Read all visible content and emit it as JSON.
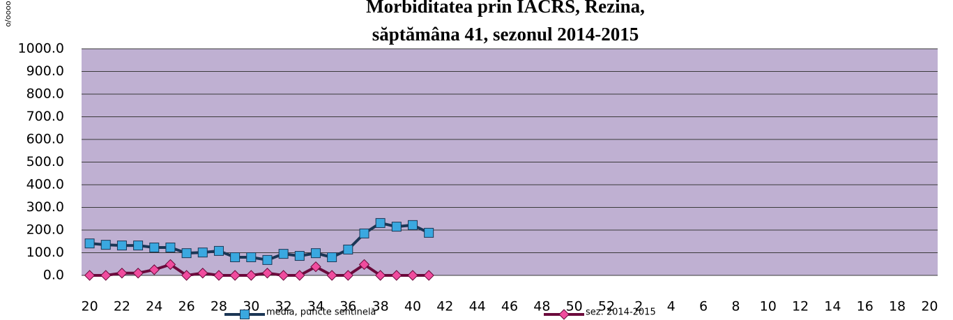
{
  "chart_data": {
    "type": "line",
    "title": [
      "Morbiditatea prin IACRS, Rezina,",
      "săptămâna 41, sezonul  2014-2015"
    ],
    "y_axis_label": "o/oooo",
    "categories": [
      20,
      null,
      22,
      null,
      24,
      null,
      26,
      null,
      28,
      null,
      30,
      null,
      32,
      null,
      34,
      null,
      36,
      null,
      38,
      null,
      40,
      null,
      42,
      null,
      44,
      null,
      46,
      null,
      48,
      null,
      50,
      null,
      52,
      null,
      2,
      null,
      4,
      null,
      6,
      null,
      8,
      null,
      10,
      null,
      12,
      null,
      14,
      null,
      16,
      null,
      18,
      null,
      20
    ],
    "series": [
      {
        "name": "media, puncte sentinelă",
        "color": "#1b3655",
        "marker_color": "#3aa8e0",
        "marker": "square",
        "values": [
          141,
          135,
          132,
          132,
          123,
          123,
          98,
          101,
          108,
          80,
          80,
          68,
          95,
          86,
          98,
          80,
          114,
          185,
          231,
          215,
          222,
          188,
          null,
          null,
          null,
          null,
          null,
          null,
          null,
          null,
          null,
          null,
          null,
          null,
          null,
          null,
          null,
          null,
          null,
          null,
          null,
          null,
          null,
          null,
          null,
          null,
          null,
          null,
          null,
          null,
          null,
          null,
          null
        ]
      },
      {
        "name": "sez. 2014-2015",
        "color": "#6b0a3c",
        "marker_color": "#f04c9e",
        "marker": "diamond",
        "values": [
          0,
          0,
          10,
          10,
          25,
          48,
          0,
          10,
          0,
          0,
          0,
          10,
          0,
          0,
          38,
          0,
          0,
          48,
          0,
          0,
          0,
          0,
          null,
          null,
          null,
          null,
          null,
          null,
          null,
          null,
          null,
          null,
          null,
          null,
          null,
          null,
          null,
          null,
          null,
          null,
          null,
          null,
          null,
          null,
          null,
          null,
          null,
          null,
          null,
          null,
          null,
          null,
          null
        ]
      }
    ],
    "ylim": [
      0,
      1000
    ],
    "yticks": [
      {
        "value": 0,
        "label": "0.0"
      },
      {
        "value": 100,
        "label": "100.0"
      },
      {
        "value": 200,
        "label": "200.0"
      },
      {
        "value": 300,
        "label": "300.0"
      },
      {
        "value": 400,
        "label": "400.0"
      },
      {
        "value": 500,
        "label": "500.0"
      },
      {
        "value": 600,
        "label": "600.0"
      },
      {
        "value": 700,
        "label": "700.0"
      },
      {
        "value": 800,
        "label": "800.0"
      },
      {
        "value": 900,
        "label": "900.0"
      },
      {
        "value": 1000,
        "label": "1000.0"
      }
    ],
    "grid": true,
    "plot_background": "#bfb0d2",
    "legend": "bottom"
  }
}
